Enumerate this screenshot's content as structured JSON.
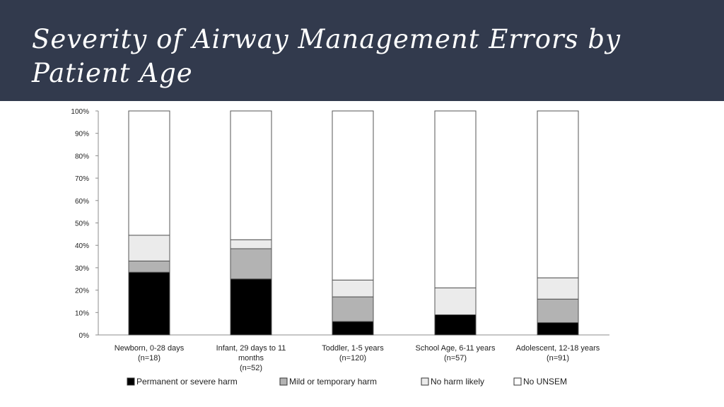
{
  "slide": {
    "title_line1": "Severity of Airway Management Errors by",
    "title_line2": "Patient Age"
  },
  "colors": {
    "header_bg": "#323a4d",
    "title_text": "#ffffff",
    "severe": "#000000",
    "mild": "#b3b3b3",
    "no_harm": "#ebebeb",
    "no_unsem": "#ffffff"
  },
  "chart_data": {
    "type": "bar",
    "stacked": true,
    "yticks": [
      "0%",
      "10%",
      "20%",
      "30%",
      "40%",
      "50%",
      "60%",
      "70%",
      "80%",
      "90%",
      "100%"
    ],
    "ylim": [
      0,
      100
    ],
    "categories": [
      [
        "Newborn, 0-28 days",
        "(n=18)"
      ],
      [
        "Infant, 29 days to 11",
        "months",
        "(n=52)"
      ],
      [
        "Toddler, 1-5 years",
        "(n=120)"
      ],
      [
        "School Age, 6-11 years",
        "(n=57)"
      ],
      [
        "Adolescent, 12-18 years",
        "(n=91)"
      ]
    ],
    "series": [
      {
        "name": "Permanent or severe harm",
        "color": "#000000",
        "values": [
          28,
          25,
          6,
          9,
          5.5
        ]
      },
      {
        "name": "Mild or temporary harm",
        "color": "#b3b3b3",
        "values": [
          5,
          13.5,
          11,
          0,
          10.5
        ]
      },
      {
        "name": "No harm likely",
        "color": "#ebebeb",
        "values": [
          11.5,
          4,
          7.5,
          12,
          9.5
        ]
      },
      {
        "name": "No UNSEM",
        "color": "#ffffff",
        "values": [
          55.5,
          57.5,
          75.5,
          79,
          74.5
        ]
      }
    ],
    "legend_position": "bottom",
    "grid": false
  }
}
